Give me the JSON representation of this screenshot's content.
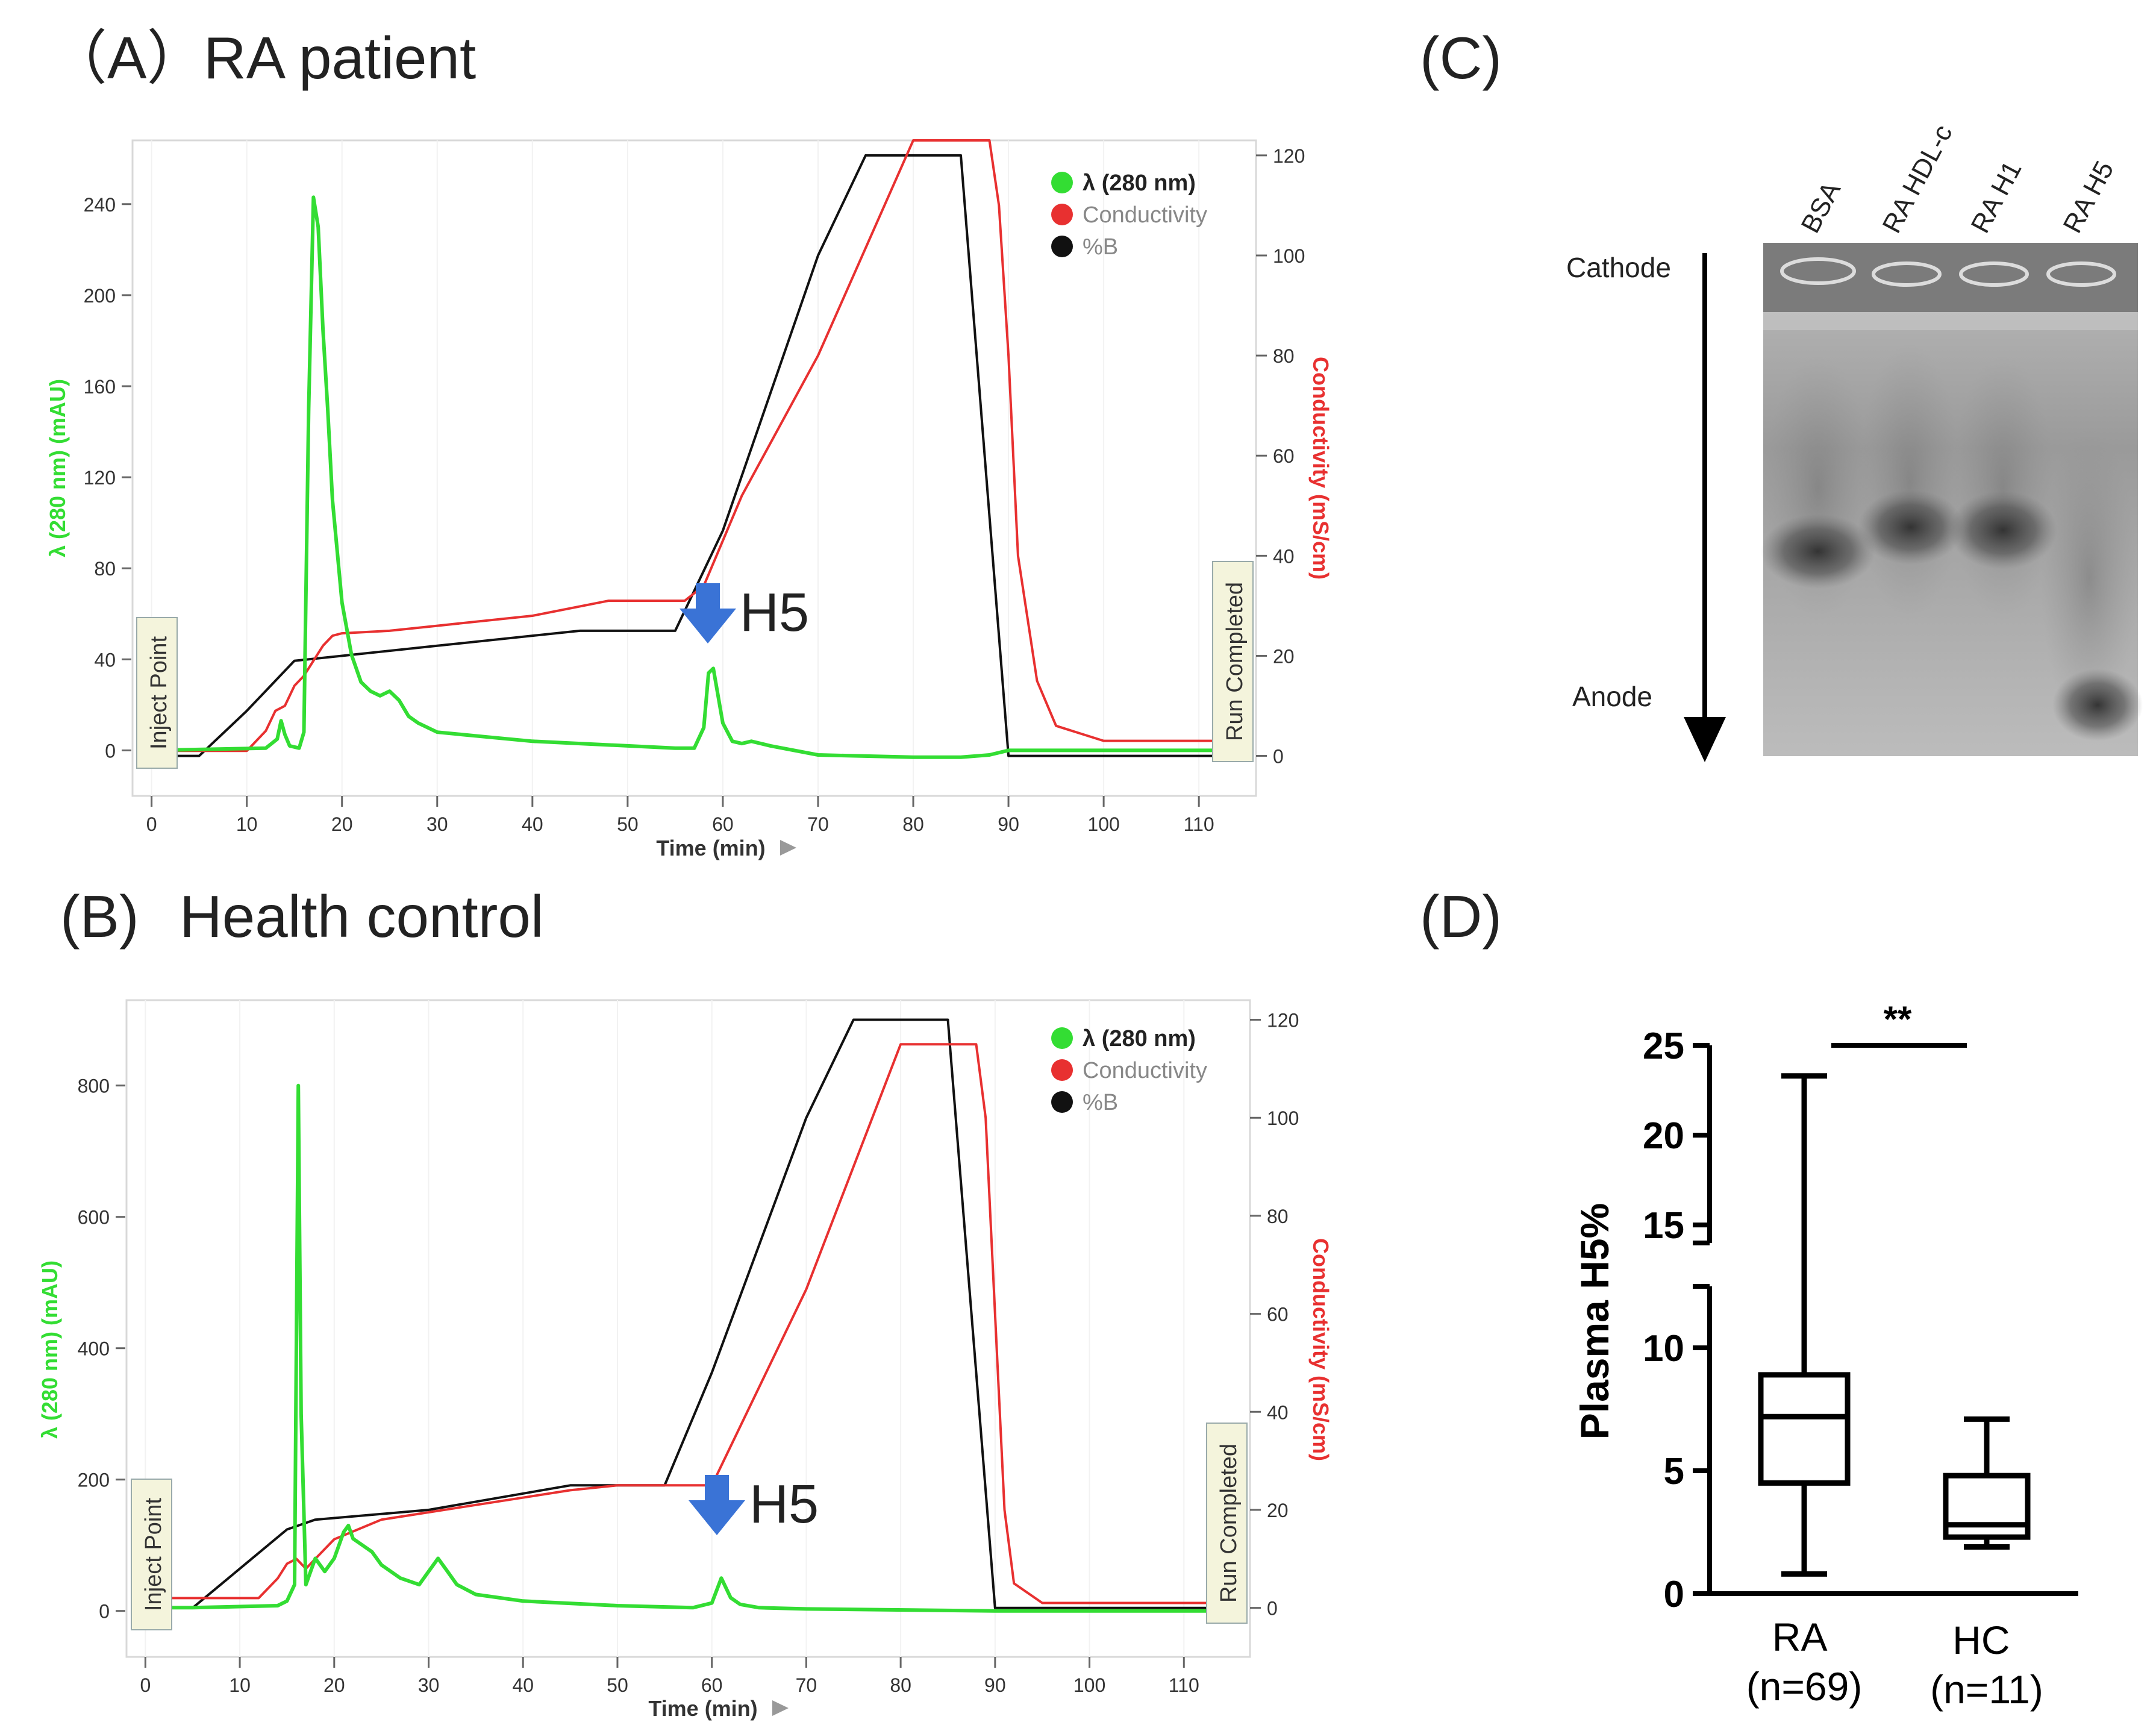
{
  "panels": {
    "A": {
      "label": "（A）",
      "title": "RA patient"
    },
    "B": {
      "label": "(B)",
      "title": "Health control"
    },
    "C": {
      "label": "(C)"
    },
    "D": {
      "label": "(D)"
    }
  },
  "chart_data": [
    {
      "panel": "A",
      "type": "line",
      "xlabel": "Time (min)",
      "ylabel_left": "λ (280 nm) (mAU)",
      "ylabel_right": "Conductivity (mS/cm)",
      "xlim": [
        -2,
        116
      ],
      "ylim_left": [
        -20,
        268
      ],
      "ylim_right": [
        -8,
        123
      ],
      "xticks": [
        0,
        10,
        20,
        30,
        40,
        50,
        60,
        70,
        80,
        90,
        100,
        110
      ],
      "yticks_left": [
        0,
        40,
        80,
        120,
        160,
        200,
        240
      ],
      "yticks_right": [
        0,
        20,
        40,
        60,
        80,
        100,
        120
      ],
      "legend_position": "top-right",
      "legend": [
        {
          "name": "λ (280 nm)",
          "color": "#33dd33"
        },
        {
          "name": "Conductivity",
          "color": "#e83030"
        },
        {
          "name": "%B",
          "color": "#111111"
        }
      ],
      "series": [
        {
          "name": "λ (280 nm)",
          "axis": "left",
          "color": "#33dd33",
          "x": [
            0,
            12,
            13.2,
            13.6,
            14,
            14.5,
            15.5,
            16,
            16.5,
            17,
            17.5,
            18,
            18.5,
            19,
            20,
            21,
            22,
            23,
            24,
            25,
            26,
            27,
            28,
            30,
            35,
            40,
            45,
            50,
            55,
            57,
            58,
            58.5,
            59,
            60,
            61,
            62,
            63,
            65,
            70,
            80,
            85,
            88,
            90,
            100,
            115
          ],
          "y": [
            0,
            1,
            5,
            13,
            7,
            2,
            1,
            8,
            150,
            243,
            230,
            185,
            150,
            110,
            65,
            42,
            30,
            26,
            24,
            26,
            22,
            15,
            12,
            8,
            6,
            4,
            3,
            2,
            1,
            1,
            10,
            34,
            36,
            12,
            4,
            3,
            4,
            2,
            -2,
            -3,
            -3,
            -2,
            0,
            0,
            0
          ]
        },
        {
          "name": "Conductivity",
          "axis": "right",
          "color": "#e83030",
          "x": [
            0,
            10,
            12,
            13,
            14,
            15,
            16,
            18,
            19,
            20,
            25,
            30,
            40,
            48,
            56,
            58,
            62,
            70,
            80,
            85,
            86,
            88,
            89,
            90,
            91,
            93,
            95,
            100,
            115
          ],
          "y": [
            1,
            1,
            5,
            9,
            10,
            14,
            16,
            22,
            24,
            24.5,
            25,
            26,
            28,
            31,
            31,
            34,
            52,
            80,
            123,
            123,
            123,
            123,
            110,
            80,
            40,
            15,
            6,
            3,
            3
          ]
        },
        {
          "name": "%B",
          "axis": "right",
          "color": "#111111",
          "x": [
            0,
            5,
            10,
            15,
            20,
            30,
            45,
            55,
            60,
            70,
            75,
            80,
            85,
            90,
            115
          ],
          "y": [
            0,
            0,
            9,
            19,
            20,
            22,
            25,
            25,
            45,
            100,
            120,
            120,
            120,
            0,
            0
          ]
        }
      ],
      "annotations": [
        {
          "text": "H5",
          "x": 59
        },
        {
          "text": "Inject Point",
          "x": 0
        },
        {
          "text": "Run Completed",
          "x": 115
        }
      ]
    },
    {
      "panel": "B",
      "type": "line",
      "xlabel": "Time (min)",
      "ylabel_left": "λ (280 nm) (mAU)",
      "ylabel_right": "Conductivity (mS/cm)",
      "xlim": [
        -2,
        117
      ],
      "ylim_left": [
        -70,
        930
      ],
      "ylim_right": [
        -10,
        124
      ],
      "xticks": [
        0,
        10,
        20,
        30,
        40,
        50,
        60,
        70,
        80,
        90,
        100,
        110
      ],
      "yticks_left": [
        0,
        200,
        400,
        600,
        800
      ],
      "yticks_right": [
        0,
        20,
        40,
        60,
        80,
        100,
        120
      ],
      "legend_position": "top-right",
      "legend": [
        {
          "name": "λ (280 nm)",
          "color": "#33dd33"
        },
        {
          "name": "Conductivity",
          "color": "#e83030"
        },
        {
          "name": "%B",
          "color": "#111111"
        }
      ],
      "series": [
        {
          "name": "λ (280 nm)",
          "axis": "left",
          "color": "#33dd33",
          "x": [
            0,
            5,
            14,
            15,
            15.8,
            16.2,
            16.5,
            17,
            17.5,
            18,
            19,
            20,
            21,
            21.5,
            22,
            23,
            24,
            25,
            27,
            29,
            30,
            31,
            32,
            33,
            35,
            40,
            50,
            58,
            60,
            61,
            62,
            63,
            65,
            70,
            90,
            115
          ],
          "y": [
            5,
            5,
            8,
            15,
            40,
            800,
            300,
            40,
            60,
            80,
            60,
            80,
            120,
            130,
            110,
            100,
            90,
            70,
            50,
            40,
            60,
            80,
            60,
            40,
            25,
            15,
            8,
            5,
            12,
            50,
            20,
            10,
            5,
            3,
            0,
            0
          ]
        },
        {
          "name": "Conductivity",
          "axis": "right",
          "color": "#e83030",
          "x": [
            0,
            12,
            14,
            15,
            16,
            17,
            18,
            19,
            20,
            25,
            35,
            45,
            50,
            55,
            60,
            70,
            80,
            85,
            88,
            89,
            90,
            91,
            92,
            95,
            115
          ],
          "y": [
            2,
            2,
            6,
            9,
            10,
            8,
            10,
            12,
            14,
            18,
            21,
            24,
            25,
            25,
            25,
            65,
            115,
            115,
            115,
            100,
            60,
            20,
            5,
            1,
            1
          ]
        },
        {
          "name": "%B",
          "axis": "right",
          "color": "#111111",
          "x": [
            0,
            5,
            10,
            15,
            18,
            30,
            45,
            55,
            60,
            70,
            75,
            85,
            90,
            115
          ],
          "y": [
            0,
            0,
            8,
            16,
            18,
            20,
            25,
            25,
            48,
            100,
            120,
            120,
            0,
            0
          ]
        }
      ],
      "annotations": [
        {
          "text": "H5",
          "x": 60
        },
        {
          "text": "Inject Point",
          "x": 0
        },
        {
          "text": "Run Completed",
          "x": 115
        }
      ]
    },
    {
      "panel": "D",
      "type": "box",
      "ylabel": "Plasma H5%",
      "yticks": [
        0,
        5,
        10,
        15,
        20,
        25
      ],
      "y_axis_break": [
        12.5,
        14
      ],
      "categories": [
        "RA\n(n=69)",
        "HC\n(n=11)"
      ],
      "category_lines": [
        [
          "RA",
          "(n=69)"
        ],
        [
          "HC",
          "(n=11)"
        ]
      ],
      "boxes": [
        {
          "name": "RA",
          "whisker_low": 0.8,
          "q1": 4.5,
          "median": 7.2,
          "q3": 8.9,
          "whisker_high": 23.3
        },
        {
          "name": "HC",
          "whisker_low": 1.9,
          "q1": 2.3,
          "median": 2.8,
          "q3": 4.8,
          "whisker_high": 7.1
        }
      ],
      "significance": "**"
    }
  ],
  "gel": {
    "lanes": [
      "BSA",
      "RA HDL-c",
      "RA H1",
      "RA H5"
    ],
    "top_label": "Cathode",
    "bottom_label": "Anode"
  }
}
